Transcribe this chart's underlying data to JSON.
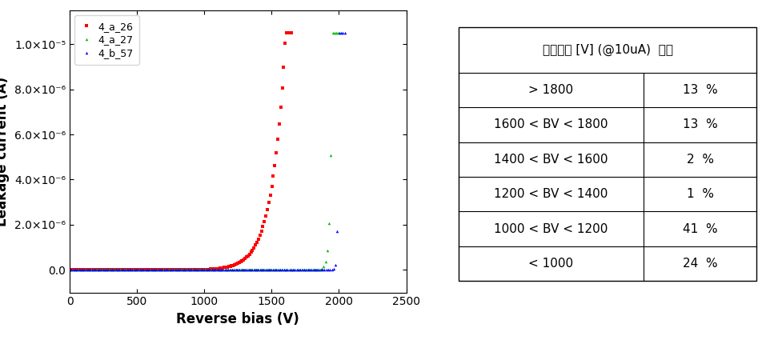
{
  "xlabel": "Reverse bias (V)",
  "ylabel": "Leakage current (A)",
  "xlim": [
    0,
    2500
  ],
  "ylim": [
    -1e-06,
    1.15e-05
  ],
  "yticks": [
    0,
    2e-06,
    4e-06,
    6e-06,
    8e-06,
    1e-05
  ],
  "xticks": [
    0,
    500,
    1000,
    1500,
    2000,
    2500
  ],
  "series": [
    {
      "label": "4_a_26",
      "color": "#ff0000",
      "marker": "s",
      "breakdown": 1600,
      "onset": 900,
      "steepness": 7.0
    },
    {
      "label": "4_a_27",
      "color": "#00bb00",
      "marker": "^",
      "breakdown": 1950,
      "onset": 1800,
      "steepness": 10.0
    },
    {
      "label": "4_b_57",
      "color": "#0000ff",
      "marker": "^",
      "breakdown": 2000,
      "onset": 1920,
      "steepness": 12.0
    }
  ],
  "table_title": "항복전압 [V] (@10uA)  분포",
  "table_rows": [
    [
      "> 1800",
      "13  %"
    ],
    [
      "1600 < BV < 1800",
      "13  %"
    ],
    [
      "1400 < BV < 1600",
      "2  %"
    ],
    [
      "1200 < BV < 1400",
      "1  %"
    ],
    [
      "1000 < BV < 1200",
      "41  %"
    ],
    [
      "< 1000",
      "24  %"
    ]
  ],
  "background_color": "#ffffff",
  "legend_fontsize": 9,
  "axis_label_fontsize": 12,
  "tick_fontsize": 10,
  "n_points": 300
}
